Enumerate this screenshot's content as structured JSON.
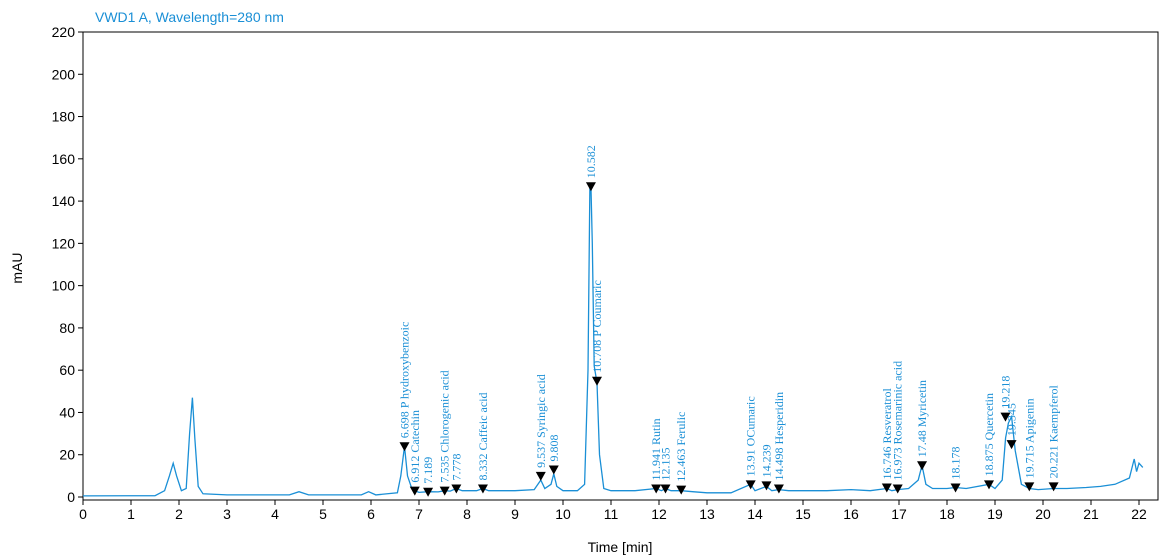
{
  "chart_data": {
    "type": "line",
    "title": "VWD1 A, Wavelength=280 nm",
    "xlabel": "Time [min]",
    "ylabel": "mAU",
    "xlim": [
      0,
      22.5
    ],
    "ylim": [
      -5,
      220
    ],
    "xticks": [
      0,
      1,
      2,
      3,
      4,
      5,
      6,
      7,
      8,
      9,
      10,
      11,
      12,
      13,
      14,
      15,
      16,
      17,
      18,
      19,
      20,
      21,
      22
    ],
    "yticks": [
      0,
      20,
      40,
      60,
      80,
      100,
      120,
      140,
      160,
      180,
      200,
      220
    ],
    "line_color": "#1a8fd6",
    "marker_color": "#000000",
    "baseline": [
      [
        0,
        0.5
      ],
      [
        1.5,
        0.6
      ],
      [
        1.7,
        3
      ],
      [
        1.8,
        10
      ],
      [
        1.88,
        16
      ],
      [
        1.95,
        10
      ],
      [
        2.05,
        3
      ],
      [
        2.15,
        4
      ],
      [
        2.22,
        30
      ],
      [
        2.28,
        47
      ],
      [
        2.33,
        28
      ],
      [
        2.4,
        5
      ],
      [
        2.5,
        1.5
      ],
      [
        3,
        1
      ],
      [
        4.3,
        1
      ],
      [
        4.5,
        2.5
      ],
      [
        4.7,
        1
      ],
      [
        5.8,
        1
      ],
      [
        5.95,
        2.5
      ],
      [
        6.1,
        1
      ],
      [
        6.55,
        2
      ],
      [
        6.62,
        10
      ],
      [
        6.698,
        24
      ],
      [
        6.76,
        10
      ],
      [
        6.85,
        4
      ],
      [
        6.912,
        3
      ],
      [
        7.0,
        2.2
      ],
      [
        7.189,
        2.5
      ],
      [
        7.4,
        2.4
      ],
      [
        7.535,
        3
      ],
      [
        7.65,
        2.8
      ],
      [
        7.778,
        4
      ],
      [
        7.9,
        3
      ],
      [
        8.2,
        3
      ],
      [
        8.332,
        4
      ],
      [
        8.45,
        3
      ],
      [
        9.0,
        3
      ],
      [
        9.4,
        3.5
      ],
      [
        9.537,
        8
      ],
      [
        9.62,
        4
      ],
      [
        9.75,
        6
      ],
      [
        9.808,
        11
      ],
      [
        9.87,
        5
      ],
      [
        10.0,
        3
      ],
      [
        10.3,
        3
      ],
      [
        10.45,
        6
      ],
      [
        10.52,
        60
      ],
      [
        10.56,
        148
      ],
      [
        10.582,
        148
      ],
      [
        10.61,
        120
      ],
      [
        10.65,
        62
      ],
      [
        10.708,
        54
      ],
      [
        10.76,
        20
      ],
      [
        10.85,
        4
      ],
      [
        11.0,
        3
      ],
      [
        11.5,
        3
      ],
      [
        11.941,
        4
      ],
      [
        12.05,
        3
      ],
      [
        12.135,
        4
      ],
      [
        12.25,
        3
      ],
      [
        12.463,
        3
      ],
      [
        12.7,
        2.5
      ],
      [
        13.0,
        2
      ],
      [
        13.5,
        2
      ],
      [
        13.91,
        6
      ],
      [
        14.0,
        3
      ],
      [
        14.239,
        5
      ],
      [
        14.35,
        3
      ],
      [
        14.498,
        3.5
      ],
      [
        14.7,
        3
      ],
      [
        15.5,
        3
      ],
      [
        16.0,
        3.5
      ],
      [
        16.4,
        3
      ],
      [
        16.746,
        4
      ],
      [
        16.85,
        3
      ],
      [
        16.973,
        3.5
      ],
      [
        17.2,
        4
      ],
      [
        17.4,
        8
      ],
      [
        17.48,
        15
      ],
      [
        17.56,
        6
      ],
      [
        17.7,
        4
      ],
      [
        18.0,
        4
      ],
      [
        18.178,
        4.5
      ],
      [
        18.4,
        4
      ],
      [
        18.875,
        6
      ],
      [
        19.0,
        4
      ],
      [
        19.15,
        8
      ],
      [
        19.22,
        28
      ],
      [
        19.28,
        35
      ],
      [
        19.345,
        38
      ],
      [
        19.42,
        22
      ],
      [
        19.55,
        6
      ],
      [
        19.715,
        4
      ],
      [
        19.9,
        3.5
      ],
      [
        20.221,
        4
      ],
      [
        20.5,
        4
      ],
      [
        20.9,
        4.5
      ],
      [
        21.2,
        5
      ],
      [
        21.5,
        6
      ],
      [
        21.8,
        9
      ],
      [
        21.9,
        18
      ],
      [
        21.95,
        12
      ],
      [
        22.0,
        16
      ],
      [
        22.08,
        14
      ]
    ],
    "peaks": [
      {
        "rt": 6.698,
        "y": 24,
        "label": "6.698 P hydroxybenzoic"
      },
      {
        "rt": 6.912,
        "y": 3,
        "label": "6.912 Catechin"
      },
      {
        "rt": 7.189,
        "y": 2.5,
        "label": "7.189"
      },
      {
        "rt": 7.535,
        "y": 3,
        "label": "7.535 Chlorogenic acid"
      },
      {
        "rt": 7.778,
        "y": 4,
        "label": "7.778"
      },
      {
        "rt": 8.332,
        "y": 4,
        "label": "8.332 Caffeic acid"
      },
      {
        "rt": 9.537,
        "y": 10,
        "label": "9.537 Syringic acid"
      },
      {
        "rt": 9.808,
        "y": 13,
        "label": "9.808"
      },
      {
        "rt": 10.582,
        "y": 147,
        "label": "10.582"
      },
      {
        "rt": 10.708,
        "y": 55,
        "label": "10.708 P Coumaric"
      },
      {
        "rt": 11.941,
        "y": 4,
        "label": "11.941 Rutin"
      },
      {
        "rt": 12.135,
        "y": 4,
        "label": "12.135"
      },
      {
        "rt": 12.463,
        "y": 3.5,
        "label": "12.463 Ferulic"
      },
      {
        "rt": 13.91,
        "y": 6,
        "label": "13.91 OCumaric"
      },
      {
        "rt": 14.239,
        "y": 5.5,
        "label": "14.239"
      },
      {
        "rt": 14.498,
        "y": 4,
        "label": "14.498 Hesperidin"
      },
      {
        "rt": 16.746,
        "y": 4.5,
        "label": "16.746 Resveratrol"
      },
      {
        "rt": 16.973,
        "y": 4,
        "label": "16.973 Rosemarinic acid"
      },
      {
        "rt": 17.48,
        "y": 15,
        "label": "17.48 Myricetin"
      },
      {
        "rt": 18.178,
        "y": 4.5,
        "label": "18.178"
      },
      {
        "rt": 18.875,
        "y": 6,
        "label": "18.875 Quercetin"
      },
      {
        "rt": 19.218,
        "y": 38,
        "label": "19.218"
      },
      {
        "rt": 19.345,
        "y": 25,
        "label": "19.345"
      },
      {
        "rt": 19.715,
        "y": 5,
        "label": "19.715 Apigenin"
      },
      {
        "rt": 20.221,
        "y": 5,
        "label": "20.221 Kaempferol"
      }
    ]
  }
}
